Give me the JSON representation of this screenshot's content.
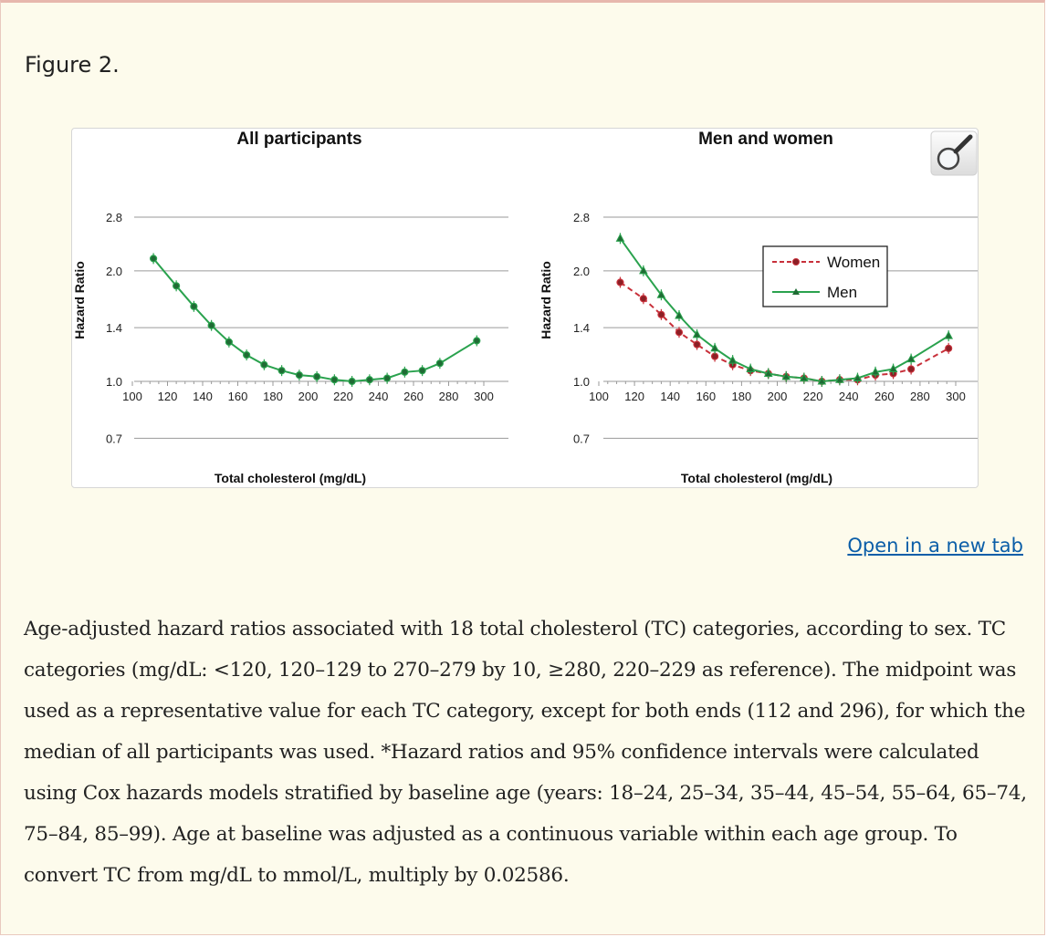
{
  "figure": {
    "label": "Figure 2.",
    "open_link": "Open in a new tab",
    "caption": "Age-adjusted hazard ratios associated with 18 total cholesterol (TC) categories, according to sex. TC categories (mg/dL: <120, 120–129 to 270–279 by 10, ≥280, 220–229 as reference). The midpoint was used as a representative value for each TC category, except for both ends (112 and 296), for which the median of all participants was used. *Hazard ratios and 95% confidence intervals were calculated using Cox hazards models stratified by baseline age (years: 18–24, 25–34, 35–44, 45–54, 55–64, 65–74, 75–84, 85–99). Age at baseline was adjusted as a continuous variable within each age group. To convert TC from mg/dL to mmol/L, multiply by 0.02586."
  },
  "colors": {
    "men": "#2aa24e",
    "women": "#c8303a",
    "grid": "#9a9a9a",
    "link": "#0b5ea8"
  },
  "chart_data": [
    {
      "type": "line",
      "title": "All participants",
      "xlabel": "Total cholesterol (mg/dL)",
      "ylabel": "Hazard Ratio",
      "yscale": "log",
      "ylim": [
        0.7,
        2.8
      ],
      "yticks": [
        0.7,
        1.0,
        1.4,
        2.0,
        2.8
      ],
      "xlim": [
        100,
        300
      ],
      "xticks": [
        100,
        120,
        140,
        160,
        180,
        200,
        220,
        240,
        260,
        280,
        300
      ],
      "x": [
        112,
        125,
        135,
        145,
        155,
        165,
        175,
        185,
        195,
        205,
        215,
        225,
        235,
        245,
        255,
        265,
        275,
        296
      ],
      "series": [
        {
          "name": "All participants",
          "marker": "circle",
          "color": "#2aa24e",
          "values": [
            2.16,
            1.82,
            1.6,
            1.42,
            1.28,
            1.18,
            1.11,
            1.07,
            1.04,
            1.03,
            1.01,
            1.0,
            1.01,
            1.02,
            1.06,
            1.07,
            1.12,
            1.29
          ]
        }
      ]
    },
    {
      "type": "line",
      "title": "Men and women",
      "xlabel": "Total cholesterol (mg/dL)",
      "ylabel": "Hazard Ratio",
      "yscale": "log",
      "ylim": [
        0.7,
        2.8
      ],
      "yticks": [
        0.7,
        1.0,
        1.4,
        2.0,
        2.8
      ],
      "xlim": [
        100,
        300
      ],
      "xticks": [
        100,
        120,
        140,
        160,
        180,
        200,
        220,
        240,
        260,
        280,
        300
      ],
      "x": [
        112,
        125,
        135,
        145,
        155,
        165,
        175,
        185,
        195,
        205,
        215,
        225,
        235,
        245,
        255,
        265,
        275,
        296
      ],
      "legend": {
        "position": "top-right",
        "entries": [
          "Women",
          "Men"
        ]
      },
      "series": [
        {
          "name": "Women",
          "marker": "circle",
          "color": "#c8303a",
          "dashed": true,
          "values": [
            1.86,
            1.68,
            1.52,
            1.36,
            1.26,
            1.17,
            1.11,
            1.07,
            1.05,
            1.03,
            1.02,
            1.0,
            1.01,
            1.01,
            1.04,
            1.05,
            1.08,
            1.23
          ]
        },
        {
          "name": "Men",
          "marker": "triangle",
          "color": "#2aa24e",
          "dashed": false,
          "values": [
            2.45,
            2.0,
            1.72,
            1.51,
            1.34,
            1.23,
            1.14,
            1.08,
            1.05,
            1.03,
            1.02,
            1.0,
            1.01,
            1.02,
            1.06,
            1.08,
            1.15,
            1.33
          ]
        }
      ]
    }
  ]
}
